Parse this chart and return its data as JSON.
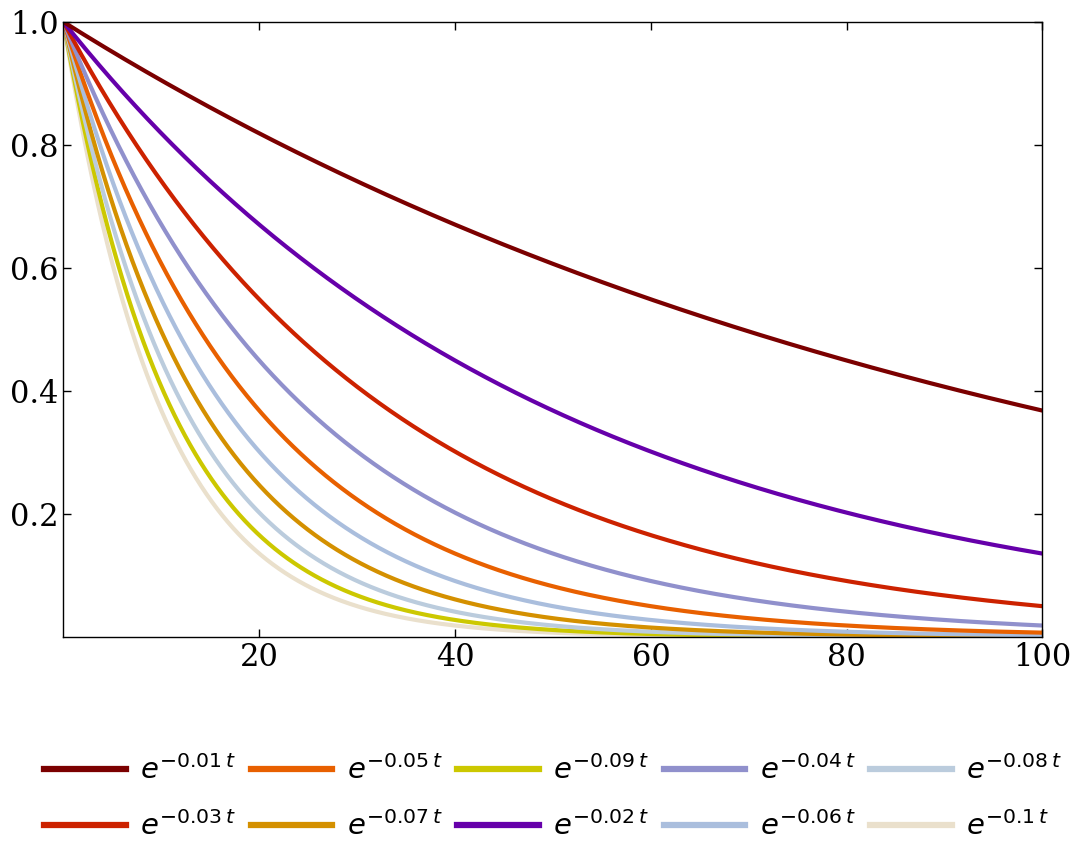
{
  "rates": [
    0.01,
    0.02,
    0.03,
    0.04,
    0.05,
    0.06,
    0.07,
    0.08,
    0.09,
    0.1
  ],
  "colors": {
    "0.01": "#7B0000",
    "0.02": "#6600AA",
    "0.03": "#CC2200",
    "0.04": "#9090CC",
    "0.05": "#E86000",
    "0.06": "#AABEDD",
    "0.07": "#D49000",
    "0.08": "#BBCCDD",
    "0.09": "#CCC800",
    "0.1": "#EAE0CC"
  },
  "line_width": 3.0,
  "xlim": [
    0,
    100
  ],
  "ylim": [
    0,
    1.0
  ],
  "xticks": [
    20,
    40,
    60,
    80,
    100
  ],
  "yticks": [
    0.2,
    0.4,
    0.6,
    0.8,
    1.0
  ],
  "background_color": "#ffffff",
  "legend_row1_rates": [
    0.01,
    0.03,
    0.05,
    0.07,
    0.09
  ],
  "legend_row2_rates": [
    0.02,
    0.04,
    0.06,
    0.08,
    0.1
  ],
  "legend_labels": {
    "0.01": "$\\mathit{e}^{-0.01\\,t}$",
    "0.02": "$\\mathit{e}^{-0.02\\,t}$",
    "0.03": "$\\mathit{e}^{-0.03\\,t}$",
    "0.04": "$\\mathit{e}^{-0.04\\,t}$",
    "0.05": "$\\mathit{e}^{-0.05\\,t}$",
    "0.06": "$\\mathit{e}^{-0.06\\,t}$",
    "0.07": "$\\mathit{e}^{-0.07\\,t}$",
    "0.08": "$\\mathit{e}^{-0.08\\,t}$",
    "0.09": "$\\mathit{e}^{-0.09\\,t}$",
    "0.1": "$\\mathit{e}^{-0.1\\,t}$"
  }
}
